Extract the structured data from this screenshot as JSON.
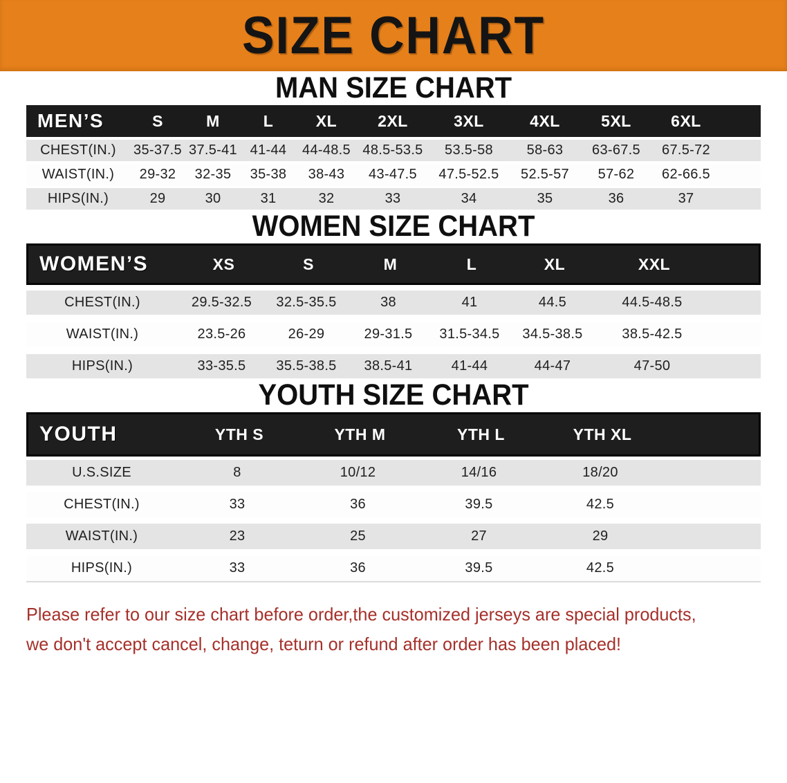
{
  "banner": {
    "title": "SIZE CHART"
  },
  "colors": {
    "banner_orange": "#E6801B",
    "header_black": "#1B1B1B",
    "row_gray": "#E4E4E4",
    "disclaimer_red": "#A5302A"
  },
  "men": {
    "heading": "MAN SIZE CHART",
    "header": [
      "MEN’S",
      "S",
      "M",
      "L",
      "XL",
      "2XL",
      "3XL",
      "4XL",
      "5XL",
      "6XL"
    ],
    "rows": [
      {
        "label": "CHEST(IN.)",
        "values": [
          "35-37.5",
          "37.5-41",
          "41-44",
          "44-48.5",
          "48.5-53.5",
          "53.5-58",
          "58-63",
          "63-67.5",
          "67.5-72"
        ]
      },
      {
        "label": "WAIST(IN.)",
        "values": [
          "29-32",
          "32-35",
          "35-38",
          "38-43",
          "43-47.5",
          "47.5-52.5",
          "52.5-57",
          "57-62",
          "62-66.5"
        ]
      },
      {
        "label": "HIPS(IN.)",
        "values": [
          "29",
          "30",
          "31",
          "32",
          "33",
          "34",
          "35",
          "36",
          "37"
        ]
      }
    ]
  },
  "women": {
    "heading": "WOMEN SIZE CHART",
    "header": [
      "WOMEN’S",
      "XS",
      "S",
      "M",
      "L",
      "XL",
      "XXL"
    ],
    "rows": [
      {
        "label": "CHEST(IN.)",
        "values": [
          "29.5-32.5",
          "32.5-35.5",
          "38",
          "41",
          "44.5",
          "44.5-48.5"
        ]
      },
      {
        "label": "WAIST(IN.)",
        "values": [
          "23.5-26",
          "26-29",
          "29-31.5",
          "31.5-34.5",
          "34.5-38.5",
          "38.5-42.5"
        ]
      },
      {
        "label": "HIPS(IN.)",
        "values": [
          "33-35.5",
          "35.5-38.5",
          "38.5-41",
          "41-44",
          "44-47",
          "47-50"
        ]
      }
    ]
  },
  "youth": {
    "heading": "YOUTH SIZE CHART",
    "header": [
      "YOUTH",
      "YTH S",
      "YTH M",
      "YTH L",
      "YTH XL"
    ],
    "rows": [
      {
        "label": "U.S.SIZE",
        "values": [
          "8",
          "10/12",
          "14/16",
          "18/20"
        ]
      },
      {
        "label": "CHEST(IN.)",
        "values": [
          "33",
          "36",
          "39.5",
          "42.5"
        ]
      },
      {
        "label": "WAIST(IN.)",
        "values": [
          "23",
          "25",
          "27",
          "29"
        ]
      },
      {
        "label": "HIPS(IN.)",
        "values": [
          "33",
          "36",
          "39.5",
          "42.5"
        ]
      }
    ]
  },
  "disclaimer": {
    "line1": "Please refer to our size chart before order,the customized jerseys are special products,",
    "line2": "we don't accept cancel, change, teturn or refund after order has been placed!"
  }
}
